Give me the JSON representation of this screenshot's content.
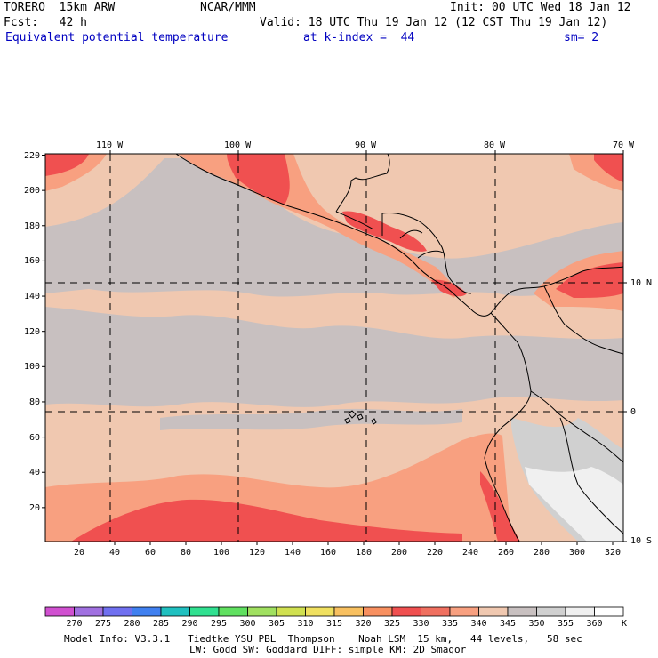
{
  "header": {
    "model": "TORERO  15km ARW",
    "org": "NCAR/MMM",
    "init": "Init: 00 UTC Wed 18 Jan 12",
    "fcst": "Fcst:   42 h",
    "valid": "Valid: 18 UTC Thu 19 Jan 12 (12 CST Thu 19 Jan 12)",
    "field": "Equivalent potential temperature",
    "level": "at k-index =  44",
    "smooth": "sm= 2"
  },
  "map": {
    "lon_labels": [
      "110 W",
      "100 W",
      "90 W",
      "80 W",
      "70 W"
    ],
    "lat_labels": [
      "10 N",
      "0",
      "10 S"
    ],
    "y_ticks": [
      "20",
      "40",
      "60",
      "80",
      "100",
      "120",
      "140",
      "160",
      "180",
      "200",
      "220"
    ],
    "x_ticks": [
      "20",
      "40",
      "60",
      "80",
      "100",
      "120",
      "140",
      "160",
      "180",
      "200",
      "220",
      "240",
      "260",
      "280",
      "300",
      "320"
    ]
  },
  "colorbar": {
    "labels": [
      "270",
      "275",
      "280",
      "285",
      "290",
      "295",
      "300",
      "305",
      "310",
      "315",
      "320",
      "325",
      "330",
      "335",
      "340",
      "345",
      "350",
      "355",
      "360"
    ],
    "unit": "K",
    "colors": [
      "#d050d0",
      "#a070e0",
      "#7070f0",
      "#4080f0",
      "#20c0c0",
      "#30e090",
      "#60e060",
      "#a0e060",
      "#d0e050",
      "#f0e060",
      "#f8c060",
      "#f89060",
      "#f05050",
      "#f07060",
      "#f8a080",
      "#f0c8b0",
      "#c8c0c0",
      "#d0d0d0",
      "#f0f0f0",
      "#ffffff"
    ]
  },
  "footer": {
    "line1": "Model Info: V3.3.1   Tiedtke YSU PBL  Thompson    Noah LSM  15 km,   44 levels,   58 sec",
    "line2": "LW: Godd SW: Goddard DIFF: simple KM: 2D Smagor"
  }
}
